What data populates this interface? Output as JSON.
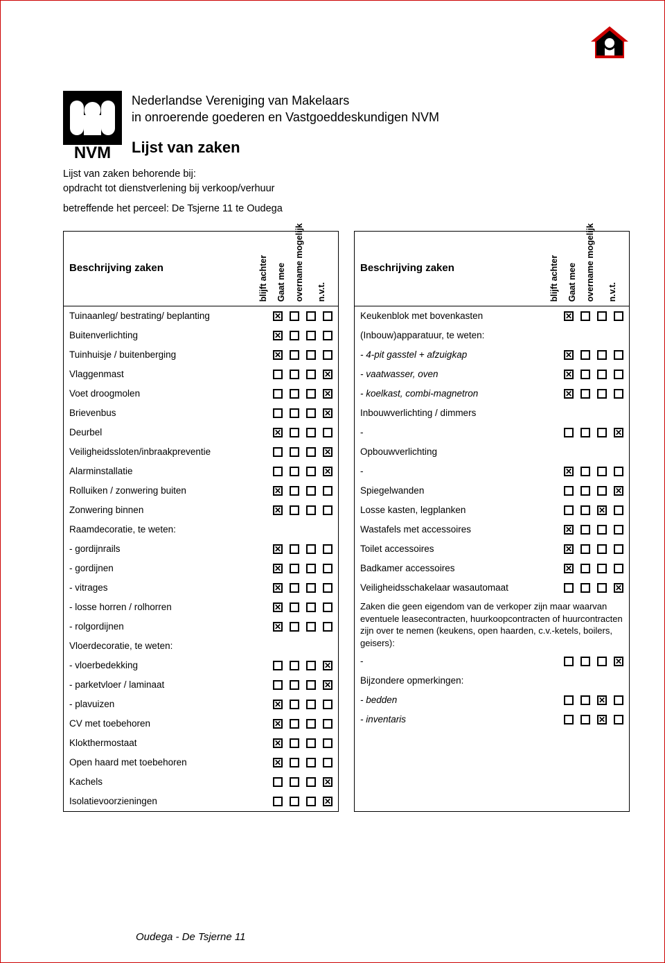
{
  "colors": {
    "page_border": "#cc0000",
    "text": "#000000",
    "house_red": "#cc0000"
  },
  "header": {
    "org_line1": "Nederlandse Vereniging van Makelaars",
    "org_line2": "in onroerende goederen en Vastgoeddeskundigen NVM",
    "title": "Lijst van zaken",
    "sub1": "Lijst van zaken behorende bij:",
    "sub2": "opdracht tot dienstverlening bij verkoop/verhuur",
    "sub3": "betreffende het perceel: De Tsjerne 11 te Oudega"
  },
  "column_header": {
    "label": "Beschrijving zaken",
    "c1": "blijft achter",
    "c2": "Gaat mee",
    "c3": "overname mogelijk",
    "c4": "n.v.t."
  },
  "left_rows": [
    {
      "label": "Tuinaanleg/ bestrating/ beplanting",
      "v": [
        1,
        0,
        0,
        0
      ]
    },
    {
      "label": "Buitenverlichting",
      "v": [
        1,
        0,
        0,
        0
      ]
    },
    {
      "label": "Tuinhuisje / buitenberging",
      "v": [
        1,
        0,
        0,
        0
      ]
    },
    {
      "label": "Vlaggenmast",
      "v": [
        0,
        0,
        0,
        1
      ]
    },
    {
      "label": "Voet droogmolen",
      "v": [
        0,
        0,
        0,
        1
      ]
    },
    {
      "label": "Brievenbus",
      "v": [
        0,
        0,
        0,
        1
      ]
    },
    {
      "label": "Deurbel",
      "v": [
        1,
        0,
        0,
        0
      ]
    },
    {
      "label": "Veiligheidssloten/inbraakpreventie",
      "v": [
        0,
        0,
        0,
        1
      ]
    },
    {
      "label": "Alarminstallatie",
      "v": [
        0,
        0,
        0,
        1
      ]
    },
    {
      "label": "Rolluiken / zonwering buiten",
      "v": [
        1,
        0,
        0,
        0
      ]
    },
    {
      "label": "Zonwering binnen",
      "v": [
        1,
        0,
        0,
        0
      ]
    },
    {
      "label": "Raamdecoratie, te weten:",
      "v": null
    },
    {
      "label": "- gordijnrails",
      "v": [
        1,
        0,
        0,
        0
      ]
    },
    {
      "label": "- gordijnen",
      "v": [
        1,
        0,
        0,
        0
      ]
    },
    {
      "label": "- vitrages",
      "v": [
        1,
        0,
        0,
        0
      ]
    },
    {
      "label": "- losse horren / rolhorren",
      "v": [
        1,
        0,
        0,
        0
      ]
    },
    {
      "label": "- rolgordijnen",
      "v": [
        1,
        0,
        0,
        0
      ]
    },
    {
      "label": "Vloerdecoratie, te weten:",
      "v": null
    },
    {
      "label": "- vloerbedekking",
      "v": [
        0,
        0,
        0,
        1
      ]
    },
    {
      "label": "- parketvloer / laminaat",
      "v": [
        0,
        0,
        0,
        1
      ]
    },
    {
      "label": "- plavuizen",
      "v": [
        1,
        0,
        0,
        0
      ]
    },
    {
      "label": "CV met toebehoren",
      "v": [
        1,
        0,
        0,
        0
      ]
    },
    {
      "label": "Klokthermostaat",
      "v": [
        1,
        0,
        0,
        0
      ]
    },
    {
      "label": "Open haard met toebehoren",
      "v": [
        1,
        0,
        0,
        0
      ]
    },
    {
      "label": "Kachels",
      "v": [
        0,
        0,
        0,
        1
      ]
    },
    {
      "label": "Isolatievoorzieningen",
      "v": [
        0,
        0,
        0,
        1
      ]
    }
  ],
  "right_rows_top": [
    {
      "label": "Keukenblok met bovenkasten",
      "v": [
        1,
        0,
        0,
        0
      ]
    },
    {
      "label": "(Inbouw)apparatuur, te weten:",
      "v": null
    },
    {
      "label": "- 4-pit gasstel + afzuigkap",
      "v": [
        1,
        0,
        0,
        0
      ],
      "italic": true
    },
    {
      "label": "- vaatwasser, oven",
      "v": [
        1,
        0,
        0,
        0
      ],
      "italic": true
    },
    {
      "label": "- koelkast, combi-magnetron",
      "v": [
        1,
        0,
        0,
        0
      ],
      "italic": true
    },
    {
      "label": "Inbouwverlichting / dimmers",
      "v": null
    },
    {
      "label": "-",
      "v": [
        0,
        0,
        0,
        1
      ]
    },
    {
      "label": "Opbouwverlichting",
      "v": null
    },
    {
      "label": "-",
      "v": [
        1,
        0,
        0,
        0
      ]
    },
    {
      "label": "Spiegelwanden",
      "v": [
        0,
        0,
        0,
        1
      ]
    },
    {
      "label": "Losse kasten, legplanken",
      "v": [
        0,
        0,
        1,
        0
      ]
    },
    {
      "label": "Wastafels met accessoires",
      "v": [
        1,
        0,
        0,
        0
      ]
    },
    {
      "label": "Toilet accessoires",
      "v": [
        1,
        0,
        0,
        0
      ]
    },
    {
      "label": "Badkamer accessoires",
      "v": [
        1,
        0,
        0,
        0
      ]
    },
    {
      "label": "Veiligheidsschakelaar wasautomaat",
      "v": [
        0,
        0,
        0,
        1
      ]
    }
  ],
  "right_note": "Zaken die geen eigendom van de verkoper zijn maar waarvan eventuele leasecontracten, huurkoopcontracten of huurcontracten zijn over te nemen (keukens, open haarden, c.v.-ketels, boilers, geisers):",
  "right_rows_bottom": [
    {
      "label": "-",
      "v": [
        0,
        0,
        0,
        1
      ]
    },
    {
      "label": "Bijzondere opmerkingen:",
      "v": null
    },
    {
      "label": "- bedden",
      "v": [
        0,
        0,
        1,
        0
      ],
      "italic": true
    },
    {
      "label": "- inventaris",
      "v": [
        0,
        0,
        1,
        0
      ],
      "italic": true
    }
  ],
  "footer": "Oudega - De Tsjerne 11"
}
